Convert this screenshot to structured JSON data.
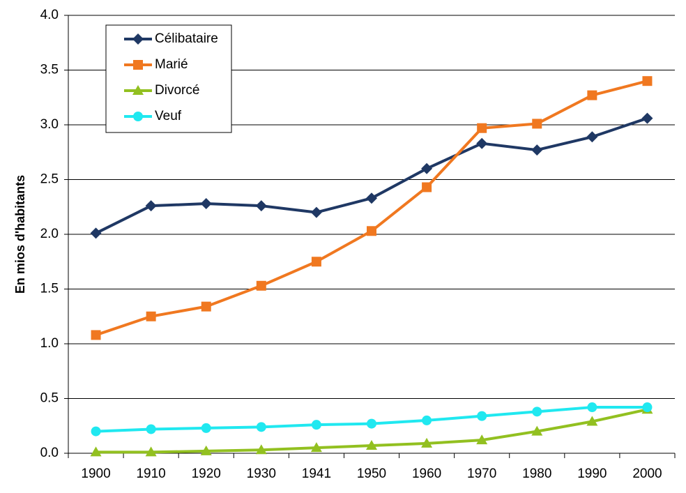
{
  "chart_data": {
    "type": "line",
    "y_label": "En mios d'habitants",
    "categories": [
      "1900",
      "1910",
      "1920",
      "1930",
      "1941",
      "1950",
      "1960",
      "1970",
      "1980",
      "1990",
      "2000"
    ],
    "series": [
      {
        "name": "Célibataire",
        "color": "#1f3864",
        "marker": "diamond",
        "values": [
          2.01,
          2.26,
          2.28,
          2.26,
          2.2,
          2.33,
          2.6,
          2.83,
          2.77,
          2.89,
          3.06
        ]
      },
      {
        "name": "Marié",
        "color": "#f07820",
        "marker": "square",
        "values": [
          1.08,
          1.25,
          1.34,
          1.53,
          1.75,
          2.03,
          2.43,
          2.97,
          3.01,
          3.27,
          3.4
        ]
      },
      {
        "name": "Divorcé",
        "color": "#92c020",
        "marker": "triangle",
        "values": [
          0.01,
          0.01,
          0.02,
          0.03,
          0.05,
          0.07,
          0.09,
          0.12,
          0.2,
          0.29,
          0.4
        ]
      },
      {
        "name": "Veuf",
        "color": "#20e8f0",
        "marker": "circle",
        "values": [
          0.2,
          0.22,
          0.23,
          0.24,
          0.26,
          0.27,
          0.3,
          0.34,
          0.38,
          0.42,
          0.42
        ]
      }
    ],
    "ylim": [
      0,
      4
    ],
    "yticks": [
      {
        "value": 0,
        "label": "0.0"
      },
      0.5,
      {
        "value": 1,
        "label": "1.0"
      },
      1.5,
      {
        "value": 2,
        "label": "2.0"
      },
      2.5,
      {
        "value": 3,
        "label": "3.0"
      },
      3.5,
      {
        "value": 4,
        "label": "4.0"
      }
    ],
    "grid": true,
    "legend": "top-left"
  }
}
